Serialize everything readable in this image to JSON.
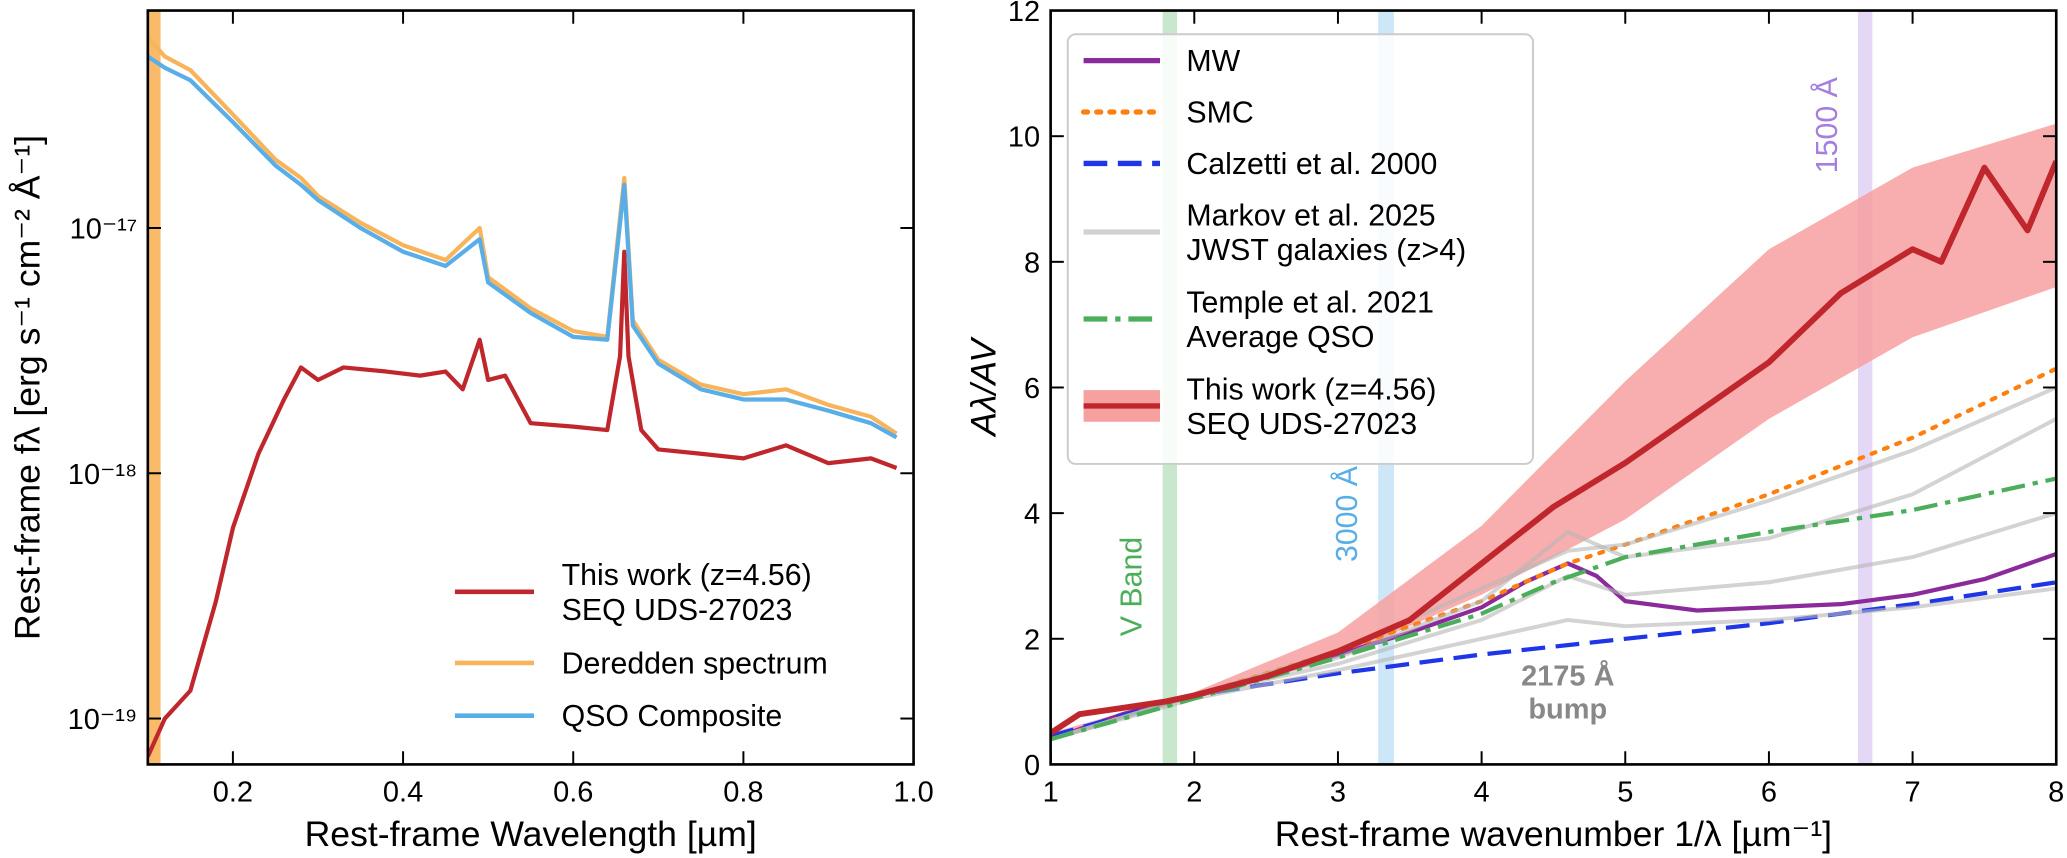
{
  "chart_data": [
    {
      "type": "line",
      "xlabel": "Rest-frame Wavelength [µm]",
      "ylabel": "Rest-frame fλ [erg s⁻¹ cm⁻² Å⁻¹]",
      "xlim": [
        0.1,
        1.0
      ],
      "ylim": [
        6.5e-20,
        7.7e-17
      ],
      "ylog": true,
      "xticks": [
        0.2,
        0.4,
        0.6,
        0.8,
        {
          "value": 1,
          "label": "1.0"
        }
      ],
      "yticks": [
        {
          "value": 1e-19,
          "label": "10⁻¹⁹"
        },
        {
          "value": 1e-18,
          "label": "10⁻¹⁸"
        },
        {
          "value": 1e-17,
          "label": "10⁻¹⁷"
        }
      ],
      "legend": "lower right",
      "bands": [
        {
          "x0": 0.1,
          "x1": 0.115,
          "color": "#f8b45a"
        }
      ],
      "series": [
        {
          "name": "This work (z=4.56)\nSEQ UDS-27023",
          "color": "#c0272d",
          "x": [
            0.1,
            0.12,
            0.15,
            0.18,
            0.2,
            0.23,
            0.26,
            0.28,
            0.3,
            0.33,
            0.38,
            0.42,
            0.45,
            0.47,
            0.49,
            0.5,
            0.52,
            0.55,
            0.6,
            0.64,
            0.655,
            0.66,
            0.665,
            0.68,
            0.7,
            0.75,
            0.8,
            0.85,
            0.9,
            0.95,
            0.98
          ],
          "values": [
            7e-20,
            1e-19,
            1.3e-19,
            3e-19,
            6e-19,
            1.2e-18,
            2e-18,
            2.7e-18,
            2.4e-18,
            2.7e-18,
            2.6e-18,
            2.5e-18,
            2.6e-18,
            2.2e-18,
            3.5e-18,
            2.4e-18,
            2.5e-18,
            1.6e-18,
            1.55e-18,
            1.5e-18,
            3e-18,
            8e-18,
            3e-18,
            1.5e-18,
            1.25e-18,
            1.2e-18,
            1.15e-18,
            1.3e-18,
            1.1e-18,
            1.15e-18,
            1.05e-18
          ]
        },
        {
          "name": "Deredden spectrum",
          "color": "#f8b45a",
          "x": [
            0.1,
            0.12,
            0.15,
            0.2,
            0.25,
            0.28,
            0.3,
            0.35,
            0.4,
            0.45,
            0.49,
            0.5,
            0.55,
            0.6,
            0.64,
            0.66,
            0.67,
            0.7,
            0.75,
            0.8,
            0.85,
            0.9,
            0.95,
            0.98
          ],
          "values": [
            6e-17,
            5e-17,
            4.4e-17,
            2.9e-17,
            1.9e-17,
            1.6e-17,
            1.35e-17,
            1.05e-17,
            8.5e-18,
            7.4e-18,
            1e-17,
            6.3e-18,
            4.7e-18,
            3.8e-18,
            3.6e-18,
            1.6e-17,
            4.2e-18,
            2.9e-18,
            2.3e-18,
            2.1e-18,
            2.2e-18,
            1.9e-18,
            1.7e-18,
            1.45e-18
          ]
        },
        {
          "name": "QSO Composite",
          "color": "#5aaee8",
          "x": [
            0.1,
            0.12,
            0.15,
            0.2,
            0.25,
            0.28,
            0.3,
            0.35,
            0.4,
            0.45,
            0.49,
            0.5,
            0.55,
            0.6,
            0.64,
            0.66,
            0.67,
            0.7,
            0.75,
            0.8,
            0.85,
            0.9,
            0.95,
            0.98
          ],
          "values": [
            5e-17,
            4.5e-17,
            4e-17,
            2.7e-17,
            1.8e-17,
            1.5e-17,
            1.3e-17,
            1e-17,
            8e-18,
            7e-18,
            9e-18,
            6e-18,
            4.5e-18,
            3.6e-18,
            3.5e-18,
            1.5e-17,
            4e-18,
            2.8e-18,
            2.2e-18,
            2e-18,
            2e-18,
            1.8e-18,
            1.6e-18,
            1.4e-18
          ]
        }
      ]
    },
    {
      "type": "line",
      "xlabel": "Rest-frame wavenumber 1/λ [µm⁻¹]",
      "ylabel": "Aλ/AV",
      "xlim": [
        1,
        8
      ],
      "ylim": [
        0,
        12
      ],
      "xticks": [
        1,
        2,
        3,
        4,
        5,
        6,
        7,
        8
      ],
      "yticks": [
        0,
        2,
        4,
        6,
        8,
        10,
        12
      ],
      "legend": "upper left",
      "bands": [
        {
          "x0": 1.78,
          "x1": 1.88,
          "color": "#4cae5a",
          "label": "V Band"
        },
        {
          "x0": 3.28,
          "x1": 3.39,
          "color": "#5aaee8",
          "label": "3000 Å"
        },
        {
          "x0": 6.62,
          "x1": 6.72,
          "color": "#a57fe0",
          "label": "1500 Å"
        }
      ],
      "annotation": "2175 Å\nbump",
      "series": [
        {
          "name": "MW",
          "color": "#8b2a9b",
          "dash": "solid",
          "x": [
            1,
            1.5,
            2,
            2.5,
            3,
            3.5,
            4,
            4.3,
            4.6,
            4.8,
            5,
            5.5,
            6,
            6.5,
            7,
            7.5,
            8
          ],
          "values": [
            0.4,
            0.8,
            1.1,
            1.4,
            1.75,
            2.1,
            2.5,
            2.9,
            3.2,
            3.0,
            2.6,
            2.45,
            2.5,
            2.55,
            2.7,
            2.95,
            3.35
          ]
        },
        {
          "name": "SMC",
          "color": "#ff7f0e",
          "dash": "dotted",
          "x": [
            1,
            2,
            3,
            4,
            4.6,
            5,
            6,
            7,
            8
          ],
          "values": [
            0.4,
            1.1,
            1.8,
            2.6,
            3.2,
            3.5,
            4.3,
            5.2,
            6.3
          ]
        },
        {
          "name": "Calzetti et al. 2000",
          "color": "#1f35e8",
          "dash": "dashed",
          "x": [
            1,
            2,
            3,
            4,
            5,
            6,
            7,
            8
          ],
          "values": [
            0.45,
            1.1,
            1.45,
            1.75,
            2.0,
            2.25,
            2.55,
            2.9
          ]
        },
        {
          "name": "Markov et al. 2025\nJWST galaxies (z>4)",
          "color": "#b5b5b5",
          "dash": "solid",
          "x": [
            1,
            2,
            3,
            4,
            4.6,
            5,
            6,
            7,
            8
          ],
          "values": [
            [
              0.4,
              1.1,
              1.7,
              2.6,
              3.7,
              3.3,
              3.6,
              4.3,
              5.5
            ],
            [
              0.4,
              1.1,
              1.6,
              2.3,
              3.0,
              2.7,
              2.9,
              3.3,
              4.0
            ],
            [
              0.4,
              1.05,
              1.5,
              2.0,
              2.3,
              2.2,
              2.3,
              2.5,
              2.8
            ],
            [
              0.4,
              1.1,
              1.8,
              2.8,
              3.4,
              3.5,
              4.2,
              5.0,
              6.0
            ]
          ]
        },
        {
          "name": "Temple et al. 2021\nAverage QSO",
          "color": "#4cae5a",
          "dash": "dashdot",
          "x": [
            1,
            2,
            3,
            4,
            4.5,
            5,
            6,
            7,
            8
          ],
          "values": [
            0.4,
            1.05,
            1.7,
            2.4,
            2.9,
            3.3,
            3.7,
            4.05,
            4.55
          ]
        },
        {
          "name": "This work (z=4.56)\nSEQ UDS-27023",
          "color": "#c0272d",
          "dash": "solid",
          "band_color": "#f7a0a0",
          "x": [
            1,
            1.2,
            1.5,
            1.8,
            2,
            2.5,
            3,
            3.5,
            4,
            4.5,
            5,
            5.5,
            6,
            6.5,
            7,
            7.2,
            7.5,
            7.8,
            8
          ],
          "values": [
            0.5,
            0.8,
            0.9,
            1.0,
            1.1,
            1.4,
            1.8,
            2.3,
            3.2,
            4.1,
            4.8,
            5.6,
            6.4,
            7.5,
            8.2,
            8.0,
            9.5,
            8.5,
            9.6
          ],
          "band_x": [
            1,
            2,
            3,
            4,
            5,
            6,
            7,
            8
          ],
          "band_upper": [
            0.5,
            1.15,
            2.1,
            3.8,
            6.1,
            8.2,
            9.5,
            10.2
          ],
          "band_lower": [
            0.45,
            1.05,
            1.7,
            2.7,
            3.9,
            5.5,
            6.8,
            7.6
          ]
        }
      ]
    }
  ]
}
